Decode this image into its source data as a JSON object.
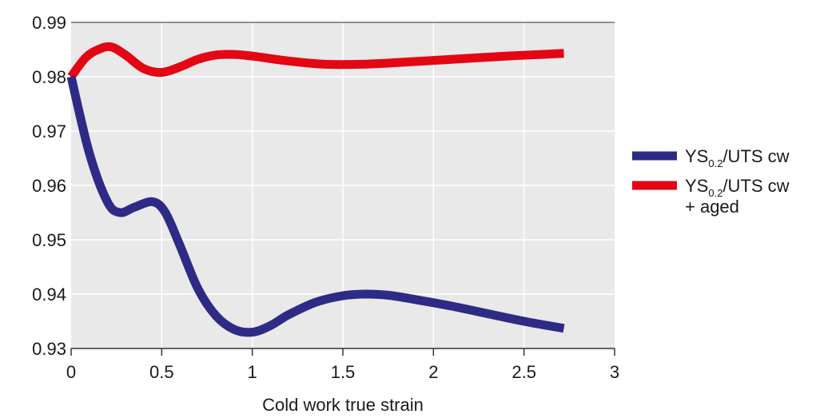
{
  "chart_data": {
    "type": "line",
    "xlabel": "Cold work true strain",
    "ylabel": "",
    "xlim": [
      0,
      3
    ],
    "ylim": [
      0.93,
      0.99
    ],
    "x_ticks": [
      0,
      0.5,
      1,
      1.5,
      2,
      2.5,
      3
    ],
    "x_tick_labels": [
      "0",
      "0.5",
      "1",
      "1.5",
      "2",
      "2.5",
      "3"
    ],
    "y_ticks": [
      0.93,
      0.94,
      0.95,
      0.96,
      0.97,
      0.98,
      0.99
    ],
    "y_tick_labels": [
      "0.93",
      "0.94",
      "0.95",
      "0.96",
      "0.97",
      "0.98",
      "0.99"
    ],
    "grid": true,
    "background_color": "#e9e9e9",
    "grid_color": "#ffffff",
    "legend_position": "right",
    "series": [
      {
        "name": "YS0.2/UTS cw",
        "legend_parts": {
          "pre": "YS",
          "sub": "0.2",
          "post": "/UTS cw",
          "line2": ""
        },
        "color": "#2e2a86",
        "x": [
          0,
          0.1,
          0.2,
          0.27,
          0.35,
          0.45,
          0.52,
          0.6,
          0.7,
          0.8,
          0.9,
          1.0,
          1.1,
          1.2,
          1.35,
          1.5,
          1.62,
          1.75,
          1.9,
          2.1,
          2.3,
          2.5,
          2.72
        ],
        "y": [
          0.98,
          0.966,
          0.957,
          0.955,
          0.956,
          0.957,
          0.955,
          0.949,
          0.941,
          0.936,
          0.9335,
          0.933,
          0.9342,
          0.9362,
          0.9385,
          0.9397,
          0.94,
          0.9398,
          0.939,
          0.9378,
          0.9364,
          0.935,
          0.9337
        ]
      },
      {
        "name": "YS0.2/UTS cw + aged",
        "legend_parts": {
          "pre": "YS",
          "sub": "0.2",
          "post": "/UTS cw",
          "line2": "+ aged"
        },
        "color": "#e30613",
        "x": [
          0,
          0.08,
          0.15,
          0.22,
          0.3,
          0.4,
          0.5,
          0.6,
          0.7,
          0.8,
          0.9,
          1.0,
          1.2,
          1.4,
          1.6,
          1.8,
          2.0,
          2.2,
          2.4,
          2.6,
          2.72
        ],
        "y": [
          0.98,
          0.9835,
          0.985,
          0.9855,
          0.984,
          0.9815,
          0.9808,
          0.9818,
          0.9832,
          0.984,
          0.9841,
          0.9838,
          0.9829,
          0.9823,
          0.9823,
          0.9826,
          0.983,
          0.9834,
          0.9838,
          0.9841,
          0.9843
        ]
      }
    ]
  }
}
